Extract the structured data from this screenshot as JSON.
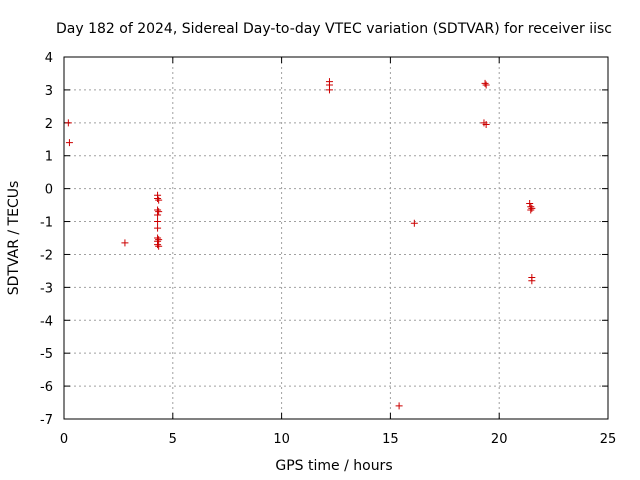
{
  "chart_data": {
    "type": "scatter",
    "title": "Day 182 of 2024, Sidereal Day-to-day VTEC variation (SDTVAR) for receiver iisc",
    "xlabel": "GPS time / hours",
    "ylabel": "SDTVAR / TECUs",
    "xlim": [
      0,
      25
    ],
    "ylim": [
      -7,
      4
    ],
    "xticks": [
      0,
      5,
      10,
      15,
      20,
      25
    ],
    "yticks": [
      -7,
      -6,
      -5,
      -4,
      -3,
      -2,
      -1,
      0,
      1,
      2,
      3,
      4
    ],
    "xtick_labels": [
      "0",
      "5",
      "10",
      "15",
      "20",
      "25"
    ],
    "ytick_labels": [
      "-7",
      "-6",
      "-5",
      "-4",
      "-3",
      "-2",
      "-1",
      "0",
      "1",
      "2",
      "3",
      "4"
    ],
    "grid": true,
    "marker": "plus",
    "color": "#cc0000",
    "series": [
      {
        "name": "iisc",
        "points": [
          [
            0.2,
            2.0
          ],
          [
            0.25,
            1.4
          ],
          [
            2.8,
            -1.65
          ],
          [
            4.3,
            -0.2
          ],
          [
            4.3,
            -0.3
          ],
          [
            4.35,
            -0.35
          ],
          [
            4.3,
            -0.65
          ],
          [
            4.35,
            -0.7
          ],
          [
            4.3,
            -0.8
          ],
          [
            4.3,
            -1.0
          ],
          [
            4.3,
            -1.2
          ],
          [
            4.3,
            -1.5
          ],
          [
            4.35,
            -1.55
          ],
          [
            4.3,
            -1.6
          ],
          [
            4.3,
            -1.7
          ],
          [
            4.35,
            -1.75
          ],
          [
            12.2,
            3.25
          ],
          [
            12.2,
            3.15
          ],
          [
            12.2,
            3.0
          ],
          [
            15.4,
            -6.6
          ],
          [
            16.1,
            -1.05
          ],
          [
            19.35,
            3.2
          ],
          [
            19.4,
            3.15
          ],
          [
            19.3,
            2.0
          ],
          [
            19.4,
            1.95
          ],
          [
            21.4,
            -0.45
          ],
          [
            21.45,
            -0.55
          ],
          [
            21.5,
            -0.6
          ],
          [
            21.45,
            -0.65
          ],
          [
            21.5,
            -2.7
          ],
          [
            21.5,
            -2.8
          ]
        ]
      }
    ]
  }
}
